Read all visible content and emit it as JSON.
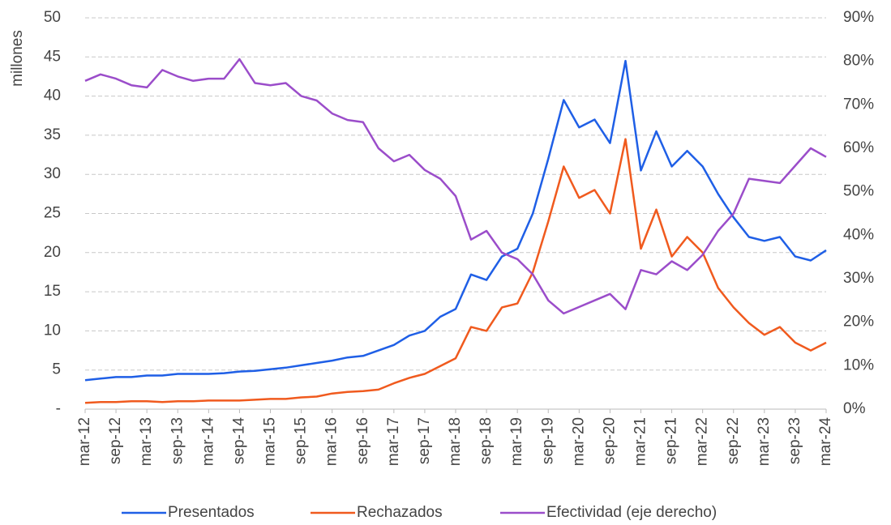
{
  "chart_data": {
    "type": "line",
    "y_label": "millones",
    "categories": [
      "mar-12",
      null,
      "sep-12",
      null,
      "mar-13",
      null,
      "sep-13",
      null,
      "mar-14",
      null,
      "sep-14",
      null,
      "mar-15",
      null,
      "sep-15",
      null,
      "mar-16",
      null,
      "sep-16",
      null,
      "mar-17",
      null,
      "sep-17",
      null,
      "mar-18",
      null,
      "sep-18",
      null,
      "mar-19",
      null,
      "sep-19",
      null,
      "mar-20",
      null,
      "sep-20",
      null,
      "mar-21",
      null,
      "sep-21",
      null,
      "mar-22",
      null,
      "sep-22",
      null,
      "mar-23",
      null,
      "sep-23",
      null,
      "mar-24"
    ],
    "series": [
      {
        "name": "Presentados",
        "color": "#1f5fe6",
        "values": [
          3.7,
          3.9,
          4.1,
          4.1,
          4.3,
          4.3,
          4.5,
          4.5,
          4.5,
          4.6,
          4.8,
          4.9,
          5.1,
          5.3,
          5.6,
          5.9,
          6.2,
          6.6,
          6.8,
          7.5,
          8.2,
          9.4,
          10.0,
          11.8,
          12.8,
          17.2,
          16.5,
          19.5,
          20.5,
          25.0,
          32.0,
          39.5,
          36.0,
          37.0,
          34.0,
          44.5,
          30.5,
          35.5,
          31.0,
          33.0,
          31.0,
          27.5,
          24.5,
          22.0,
          21.5,
          22.0,
          19.5,
          19.0,
          20.3
        ]
      },
      {
        "name": "Rechazados",
        "color": "#f05a1e",
        "values": [
          0.8,
          0.9,
          0.9,
          1.0,
          1.0,
          0.9,
          1.0,
          1.0,
          1.1,
          1.1,
          1.1,
          1.2,
          1.3,
          1.3,
          1.5,
          1.6,
          2.0,
          2.2,
          2.3,
          2.5,
          3.3,
          4.0,
          4.5,
          5.5,
          6.5,
          10.5,
          10.0,
          13.0,
          13.5,
          17.5,
          24.0,
          31.0,
          27.0,
          28.0,
          25.0,
          34.5,
          20.5,
          25.5,
          19.5,
          22.0,
          20.0,
          15.5,
          13.0,
          11.0,
          9.5,
          10.5,
          8.5,
          7.5,
          8.5
        ]
      },
      {
        "name": "Efectividad (eje derecho)",
        "color": "#9b4dca",
        "axis": "y2",
        "values": [
          75.5,
          77,
          76,
          74.5,
          74,
          78,
          76.5,
          75.5,
          76,
          76,
          80.5,
          75,
          74.5,
          75,
          72,
          71,
          68,
          66.5,
          66,
          60,
          57,
          58.5,
          55,
          53,
          49,
          39,
          41,
          36,
          34.5,
          31,
          25,
          22,
          23.5,
          25,
          26.5,
          23,
          32,
          31,
          34,
          32,
          35.5,
          41,
          45,
          53,
          52.5,
          52,
          56,
          60,
          58
        ]
      }
    ],
    "ylim": [
      0,
      50
    ],
    "yticks": [
      {
        "value": 0,
        "label": "-"
      },
      5,
      10,
      15,
      20,
      25,
      30,
      35,
      40,
      45,
      50
    ],
    "y2lim": [
      0,
      90
    ],
    "y2ticks": [
      {
        "value": 0,
        "label": "0%"
      },
      {
        "value": 10,
        "label": "10%"
      },
      {
        "value": 20,
        "label": "20%"
      },
      {
        "value": 30,
        "label": "30%"
      },
      {
        "value": 40,
        "label": "40%"
      },
      {
        "value": 50,
        "label": "50%"
      },
      {
        "value": 60,
        "label": "60%"
      },
      {
        "value": 70,
        "label": "70%"
      },
      {
        "value": 80,
        "label": "80%"
      },
      {
        "value": 90,
        "label": "90%"
      }
    ],
    "grid": true,
    "legend": "bottom"
  }
}
